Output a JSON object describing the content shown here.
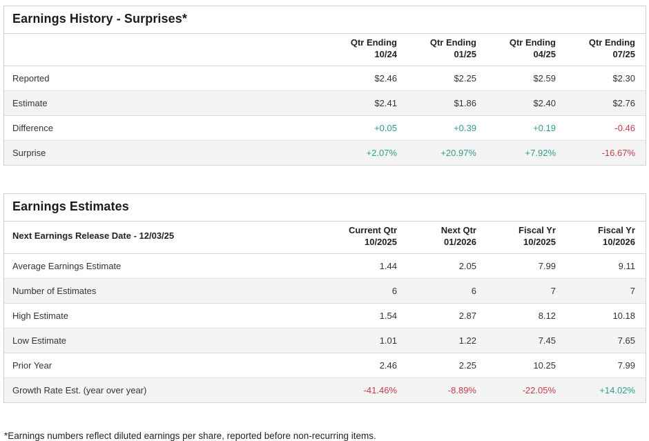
{
  "colors": {
    "positive": "#2f9d8a",
    "negative": "#c43b4c",
    "alt_row_bg": "#f4f4f4",
    "border": "#d2d2d2",
    "title_text": "#1b1b1b",
    "body_text": "#333333"
  },
  "surprises": {
    "title": "Earnings History - Surprises*",
    "columns": [
      {
        "l1": "Qtr Ending",
        "l2": "10/24"
      },
      {
        "l1": "Qtr Ending",
        "l2": "01/25"
      },
      {
        "l1": "Qtr Ending",
        "l2": "04/25"
      },
      {
        "l1": "Qtr Ending",
        "l2": "07/25"
      }
    ],
    "rows": [
      {
        "label": "Reported",
        "cells": [
          {
            "t": "$2.46",
            "s": ""
          },
          {
            "t": "$2.25",
            "s": ""
          },
          {
            "t": "$2.59",
            "s": ""
          },
          {
            "t": "$2.30",
            "s": ""
          }
        ]
      },
      {
        "label": "Estimate",
        "cells": [
          {
            "t": "$2.41",
            "s": ""
          },
          {
            "t": "$1.86",
            "s": ""
          },
          {
            "t": "$2.40",
            "s": ""
          },
          {
            "t": "$2.76",
            "s": ""
          }
        ]
      },
      {
        "label": "Difference",
        "cells": [
          {
            "t": "+0.05",
            "s": "pos"
          },
          {
            "t": "+0.39",
            "s": "pos"
          },
          {
            "t": "+0.19",
            "s": "pos"
          },
          {
            "t": "-0.46",
            "s": "neg"
          }
        ]
      },
      {
        "label": "Surprise",
        "cells": [
          {
            "t": "+2.07%",
            "s": "pos"
          },
          {
            "t": "+20.97%",
            "s": "pos"
          },
          {
            "t": "+7.92%",
            "s": "pos"
          },
          {
            "t": "-16.67%",
            "s": "neg"
          }
        ]
      }
    ]
  },
  "estimates": {
    "title": "Earnings Estimates",
    "release_date_label": "Next Earnings Release Date - 12/03/25",
    "columns": [
      {
        "l1": "Current Qtr",
        "l2": "10/2025"
      },
      {
        "l1": "Next Qtr",
        "l2": "01/2026"
      },
      {
        "l1": "Fiscal Yr",
        "l2": "10/2025"
      },
      {
        "l1": "Fiscal Yr",
        "l2": "10/2026"
      }
    ],
    "rows": [
      {
        "label": "Average Earnings Estimate",
        "cells": [
          {
            "t": "1.44",
            "s": ""
          },
          {
            "t": "2.05",
            "s": ""
          },
          {
            "t": "7.99",
            "s": ""
          },
          {
            "t": "9.11",
            "s": ""
          }
        ]
      },
      {
        "label": "Number of Estimates",
        "cells": [
          {
            "t": "6",
            "s": ""
          },
          {
            "t": "6",
            "s": ""
          },
          {
            "t": "7",
            "s": ""
          },
          {
            "t": "7",
            "s": ""
          }
        ]
      },
      {
        "label": "High Estimate",
        "cells": [
          {
            "t": "1.54",
            "s": ""
          },
          {
            "t": "2.87",
            "s": ""
          },
          {
            "t": "8.12",
            "s": ""
          },
          {
            "t": "10.18",
            "s": ""
          }
        ]
      },
      {
        "label": "Low Estimate",
        "cells": [
          {
            "t": "1.01",
            "s": ""
          },
          {
            "t": "1.22",
            "s": ""
          },
          {
            "t": "7.45",
            "s": ""
          },
          {
            "t": "7.65",
            "s": ""
          }
        ]
      },
      {
        "label": "Prior Year",
        "cells": [
          {
            "t": "2.46",
            "s": ""
          },
          {
            "t": "2.25",
            "s": ""
          },
          {
            "t": "10.25",
            "s": ""
          },
          {
            "t": "7.99",
            "s": ""
          }
        ]
      },
      {
        "label": "Growth Rate Est. (year over year)",
        "cells": [
          {
            "t": "-41.46%",
            "s": "neg"
          },
          {
            "t": "-8.89%",
            "s": "neg"
          },
          {
            "t": "-22.05%",
            "s": "neg"
          },
          {
            "t": "+14.02%",
            "s": "pos"
          }
        ]
      }
    ]
  },
  "footnote": "*Earnings numbers reflect diluted earnings per share, reported before non-recurring items."
}
